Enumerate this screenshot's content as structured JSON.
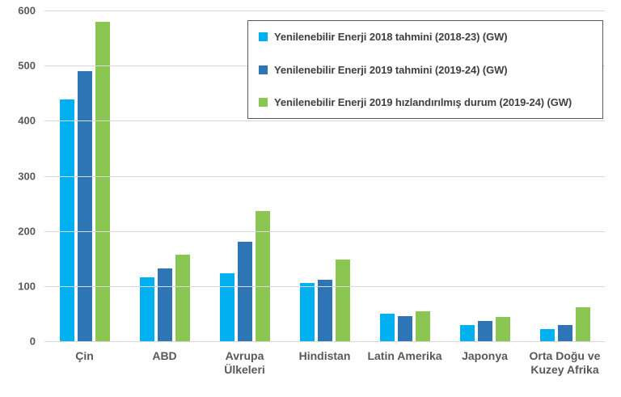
{
  "colors": {
    "background": "#FFFFFF",
    "grid": "#D9D9D9",
    "axis_text": "#595959",
    "legend_text": "#404040",
    "legend_border": "#595959",
    "series_cyan": "#00B0F0",
    "series_blue": "#2E75B6",
    "series_green": "#8CC652"
  },
  "chart_data": {
    "type": "bar",
    "title": "",
    "xlabel": "",
    "ylabel": "",
    "categories": [
      "Çin",
      "ABD",
      "Avrupa Ülkeleri",
      "Hindistan",
      "Latin Amerika",
      "Japonya",
      "Orta Doğu ve Kuzey Afrika"
    ],
    "series": [
      {
        "name": "Yenilenebilir Enerji 2018 tahmini (2018-23) (GW)",
        "color": "#00B0F0",
        "values": [
          438,
          116,
          123,
          106,
          50,
          29,
          22
        ]
      },
      {
        "name": "Yenilenebilir Enerji 2019 tahmini (2019-24) (GW)",
        "color": "#2E75B6",
        "values": [
          490,
          132,
          181,
          112,
          46,
          37,
          29
        ]
      },
      {
        "name": "Yenilenebilir Enerji 2019 hızlandırılmış durum (2019-24) (GW)",
        "color": "#8CC652",
        "values": [
          580,
          157,
          236,
          148,
          55,
          44,
          61
        ]
      }
    ],
    "ylim": [
      0,
      600
    ],
    "yticks": [
      0,
      100,
      200,
      300,
      400,
      500,
      600
    ],
    "grid": true,
    "legend_position": "top-right"
  }
}
